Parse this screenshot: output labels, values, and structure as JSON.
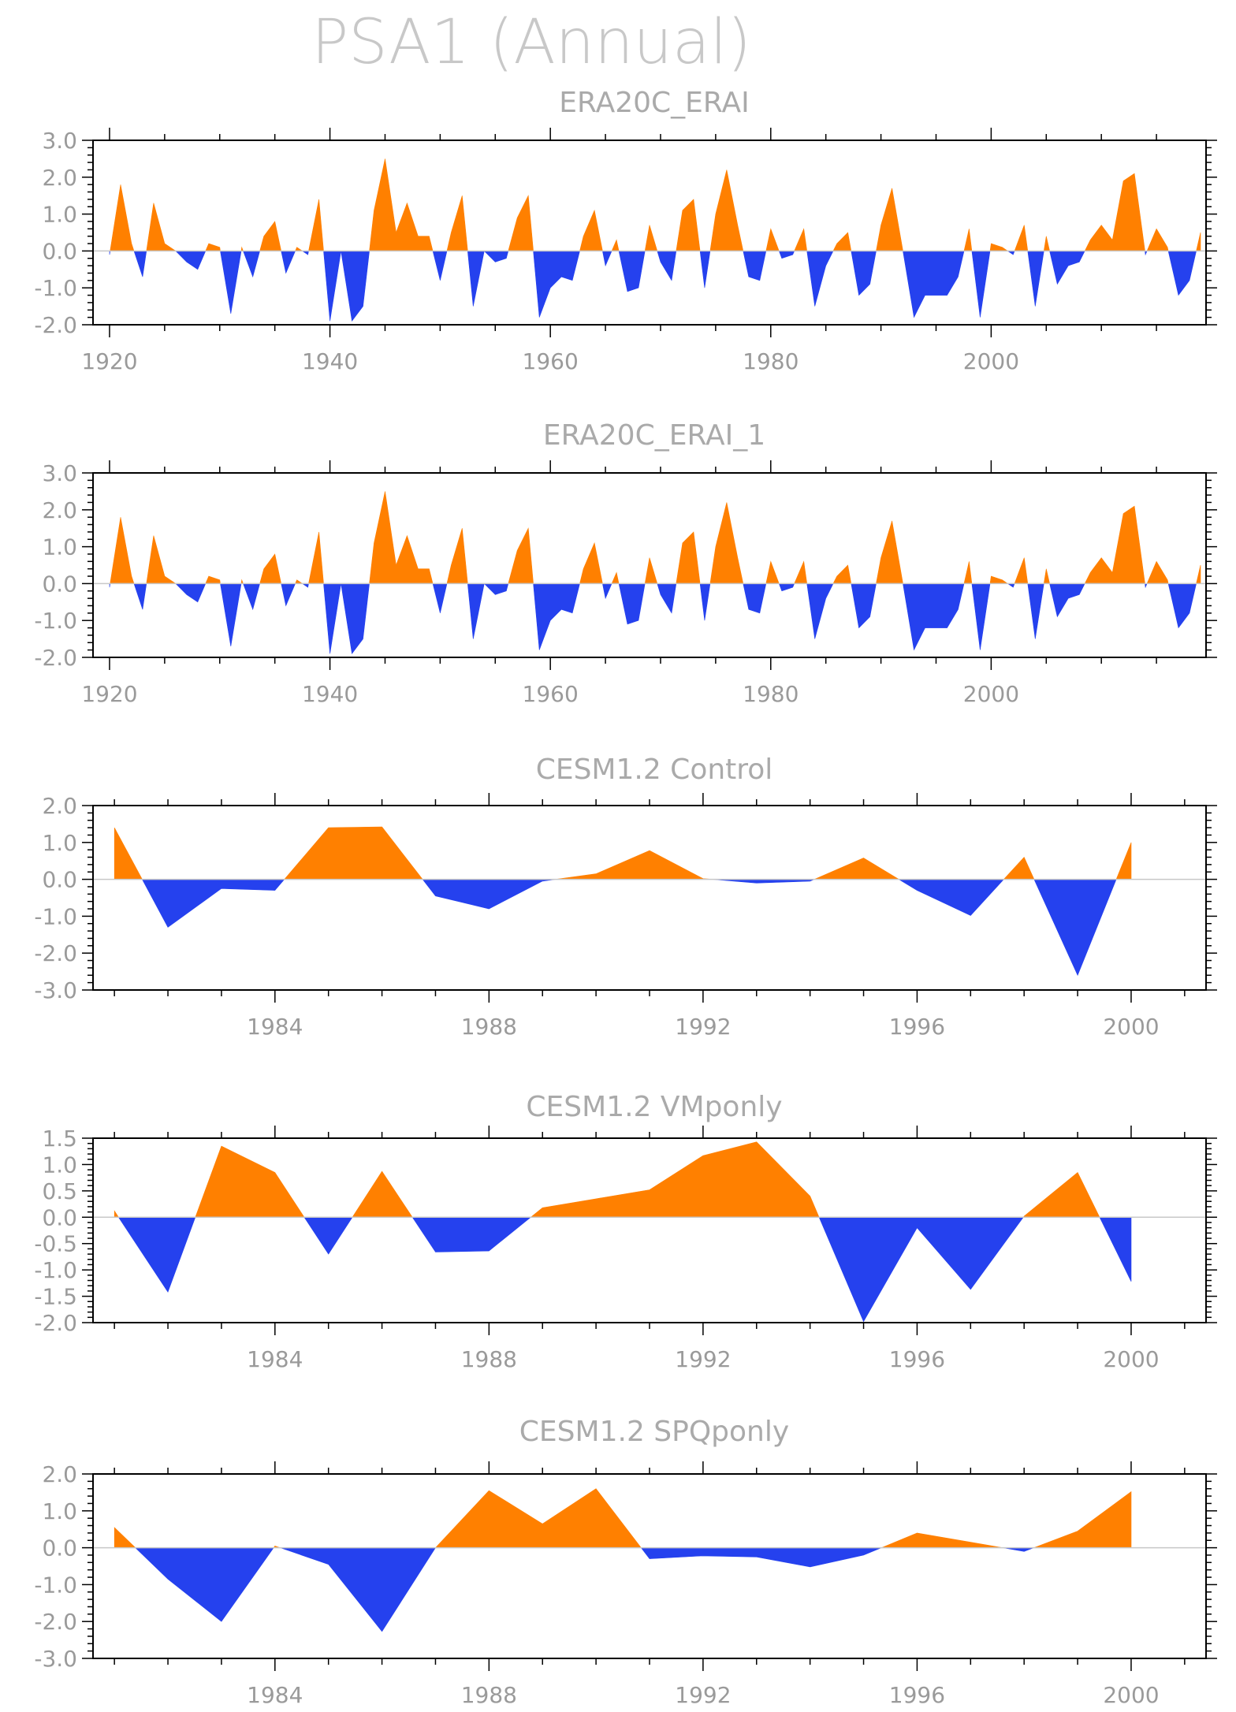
{
  "figure": {
    "title": "PSA1 (Annual)",
    "colors": {
      "positive": "#ff8000",
      "negative": "#2541ee",
      "zero_line": "#c8c8c8",
      "tick_text": "#9a9a9a"
    }
  },
  "chart_data": [
    {
      "type": "area",
      "title": "ERA20C_ERAI",
      "xlim": [
        1918.5,
        2019.5
      ],
      "ylim": [
        -2.0,
        3.0
      ],
      "x_ticks": [
        "1920",
        "1940",
        "1960",
        "1980",
        "2000"
      ],
      "x_tick_values": [
        1920,
        1940,
        1960,
        1980,
        2000
      ],
      "y_ticks": [
        "-2.0",
        "-1.0",
        "0.0",
        "1.0",
        "2.0",
        "3.0"
      ],
      "y_tick_values": [
        -2,
        -1,
        0,
        1,
        2,
        3
      ],
      "x_start": 1920,
      "values": [
        -0.1,
        1.8,
        0.2,
        -0.7,
        1.3,
        0.2,
        0.0,
        -0.3,
        -0.5,
        0.2,
        0.1,
        -1.7,
        0.1,
        -0.7,
        0.4,
        0.8,
        -0.6,
        0.1,
        -0.1,
        1.4,
        -1.9,
        0.0,
        -1.9,
        -1.5,
        1.1,
        2.5,
        0.5,
        1.3,
        0.4,
        0.4,
        -0.8,
        0.5,
        1.5,
        -1.5,
        0.0,
        -0.3,
        -0.2,
        0.9,
        1.5,
        -1.8,
        -1.0,
        -0.7,
        -0.8,
        0.4,
        1.1,
        -0.4,
        0.3,
        -1.1,
        -1.0,
        0.7,
        -0.3,
        -0.8,
        1.1,
        1.4,
        -1.0,
        1.0,
        2.2,
        0.7,
        -0.7,
        -0.8,
        0.6,
        -0.2,
        -0.1,
        0.6,
        -1.5,
        -0.4,
        0.2,
        0.5,
        -1.2,
        -0.9,
        0.7,
        1.7,
        0.0,
        -1.8,
        -1.2,
        -1.2,
        -1.2,
        -0.7,
        0.6,
        -1.8,
        0.2,
        0.1,
        -0.1,
        0.7,
        -1.5,
        0.4,
        -0.9,
        -0.4,
        -0.3,
        0.3,
        0.7,
        0.3,
        1.9,
        2.1,
        -0.1,
        0.6,
        0.1,
        -1.2,
        -0.8,
        0.5
      ],
      "x_tick_minor_step": 5,
      "y_tick_minor_step": 0.2
    },
    {
      "type": "area",
      "title": "ERA20C_ERAI_1",
      "xlim": [
        1918.5,
        2019.5
      ],
      "ylim": [
        -2.0,
        3.0
      ],
      "x_ticks": [
        "1920",
        "1940",
        "1960",
        "1980",
        "2000"
      ],
      "x_tick_values": [
        1920,
        1940,
        1960,
        1980,
        2000
      ],
      "y_ticks": [
        "-2.0",
        "-1.0",
        "0.0",
        "1.0",
        "2.0",
        "3.0"
      ],
      "y_tick_values": [
        -2,
        -1,
        0,
        1,
        2,
        3
      ],
      "x_start": 1920,
      "values": [
        -0.1,
        1.8,
        0.2,
        -0.7,
        1.3,
        0.2,
        0.0,
        -0.3,
        -0.5,
        0.2,
        0.1,
        -1.7,
        0.1,
        -0.7,
        0.4,
        0.8,
        -0.6,
        0.1,
        -0.1,
        1.4,
        -1.9,
        0.0,
        -1.9,
        -1.5,
        1.1,
        2.5,
        0.5,
        1.3,
        0.4,
        0.4,
        -0.8,
        0.5,
        1.5,
        -1.5,
        0.0,
        -0.3,
        -0.2,
        0.9,
        1.5,
        -1.8,
        -1.0,
        -0.7,
        -0.8,
        0.4,
        1.1,
        -0.4,
        0.3,
        -1.1,
        -1.0,
        0.7,
        -0.3,
        -0.8,
        1.1,
        1.4,
        -1.0,
        1.0,
        2.2,
        0.7,
        -0.7,
        -0.8,
        0.6,
        -0.2,
        -0.1,
        0.6,
        -1.5,
        -0.4,
        0.2,
        0.5,
        -1.2,
        -0.9,
        0.7,
        1.7,
        0.0,
        -1.8,
        -1.2,
        -1.2,
        -1.2,
        -0.7,
        0.6,
        -1.8,
        0.2,
        0.1,
        -0.1,
        0.7,
        -1.5,
        0.4,
        -0.9,
        -0.4,
        -0.3,
        0.3,
        0.7,
        0.3,
        1.9,
        2.1,
        -0.1,
        0.6,
        0.1,
        -1.2,
        -0.8,
        0.5
      ],
      "x_tick_minor_step": 5,
      "y_tick_minor_step": 0.2
    },
    {
      "type": "area",
      "title": "CESM1.2 Control",
      "xlim": [
        1980.6,
        2001.4
      ],
      "ylim": [
        -3.0,
        2.0
      ],
      "x_ticks": [
        "1984",
        "1988",
        "1992",
        "1996",
        "2000"
      ],
      "x_tick_values": [
        1984,
        1988,
        1992,
        1996,
        2000
      ],
      "y_ticks": [
        "-3.0",
        "-2.0",
        "-1.0",
        "0.0",
        "1.0",
        "2.0"
      ],
      "y_tick_values": [
        -3,
        -2,
        -1,
        0,
        1,
        2
      ],
      "x_start": 1981,
      "values": [
        1.4,
        -1.3,
        -0.25,
        -0.3,
        1.4,
        1.42,
        -0.45,
        -0.8,
        -0.05,
        0.15,
        0.78,
        0.02,
        -0.1,
        -0.05,
        0.58,
        -0.3,
        -0.98,
        0.6,
        -2.6,
        1.0
      ],
      "x_tick_minor_step": 1,
      "y_tick_minor_step": 0.2
    },
    {
      "type": "area",
      "title": "CESM1.2 VMponly",
      "xlim": [
        1980.6,
        2001.4
      ],
      "ylim": [
        -2.0,
        1.5
      ],
      "x_ticks": [
        "1984",
        "1988",
        "1992",
        "1996",
        "2000"
      ],
      "x_tick_values": [
        1984,
        1988,
        1992,
        1996,
        2000
      ],
      "y_ticks": [
        "-2.0",
        "-1.5",
        "-1.0",
        "-0.5",
        "0.0",
        "0.5",
        "1.0",
        "1.5"
      ],
      "y_tick_values": [
        -2,
        -1.5,
        -1,
        -0.5,
        0,
        0.5,
        1,
        1.5
      ],
      "x_start": 1981,
      "values": [
        0.12,
        -1.42,
        1.35,
        0.85,
        -0.7,
        0.87,
        -0.66,
        -0.64,
        0.18,
        0.35,
        0.52,
        1.17,
        1.43,
        0.4,
        -1.98,
        -0.2,
        -1.37,
        0.02,
        0.85,
        -1.22
      ],
      "x_tick_minor_step": 1,
      "y_tick_minor_step": 0.1
    },
    {
      "type": "area",
      "title": "CESM1.2 SPQponly",
      "xlim": [
        1980.6,
        2001.4
      ],
      "ylim": [
        -3.0,
        2.0
      ],
      "x_ticks": [
        "1984",
        "1988",
        "1992",
        "1996",
        "2000"
      ],
      "x_tick_values": [
        1984,
        1988,
        1992,
        1996,
        2000
      ],
      "y_ticks": [
        "-3.0",
        "-2.0",
        "-1.0",
        "0.0",
        "1.0",
        "2.0"
      ],
      "y_tick_values": [
        -3,
        -2,
        -1,
        0,
        1,
        2
      ],
      "x_start": 1981,
      "values": [
        0.55,
        -0.85,
        -2.0,
        0.05,
        -0.45,
        -2.27,
        0.0,
        1.55,
        0.65,
        1.6,
        -0.3,
        -0.22,
        -0.25,
        -0.52,
        -0.2,
        0.4,
        0.15,
        -0.1,
        0.45,
        1.52
      ],
      "x_tick_minor_step": 1,
      "y_tick_minor_step": 0.2
    }
  ]
}
